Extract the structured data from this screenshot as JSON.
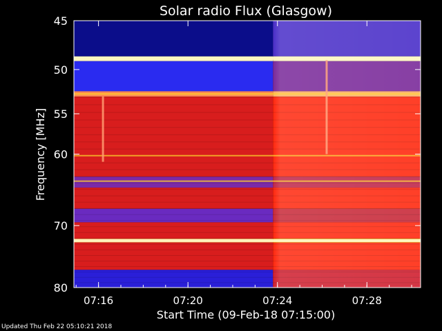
{
  "chart_data": {
    "type": "heatmap",
    "title": "Solar radio Flux (Glasgow)",
    "xlabel": "Start Time (09-Feb-18 07:15:00)",
    "ylabel": "Frequency [MHz]",
    "x_unit": "minutes after 07:15:00",
    "x_range_minutes": [
      -0.1,
      15.4
    ],
    "xticks": [
      {
        "minute": 1,
        "label": "07:16"
      },
      {
        "minute": 5,
        "label": "07:20"
      },
      {
        "minute": 9,
        "label": "07:24"
      },
      {
        "minute": 13,
        "label": "07:28"
      }
    ],
    "ylim": [
      45,
      80
    ],
    "yscale": "log",
    "yticks": [
      45,
      50,
      55,
      60,
      70,
      80
    ],
    "colors": {
      "background": "#000000",
      "low_intensity": "#2a1fd8",
      "mid_intensity": "#d81d1d",
      "high_intensity": "#ffd22a",
      "saturated": "#fff6c0"
    },
    "features": {
      "quiet_background_until_minute": 8.8,
      "enhanced_background_after_minute": 8.8,
      "persistent_emission_lines_mhz": [
        48.8,
        52.7,
        60.2,
        63.6,
        72.3
      ],
      "interference_spikes": [
        {
          "minute": 1.2,
          "mhz_range": [
            53,
            61
          ]
        },
        {
          "minute": 11.2,
          "mhz_range": [
            49,
            60
          ]
        }
      ]
    }
  },
  "footer": {
    "updated": "Updated Thu Feb 22 05:10:21 2018"
  }
}
